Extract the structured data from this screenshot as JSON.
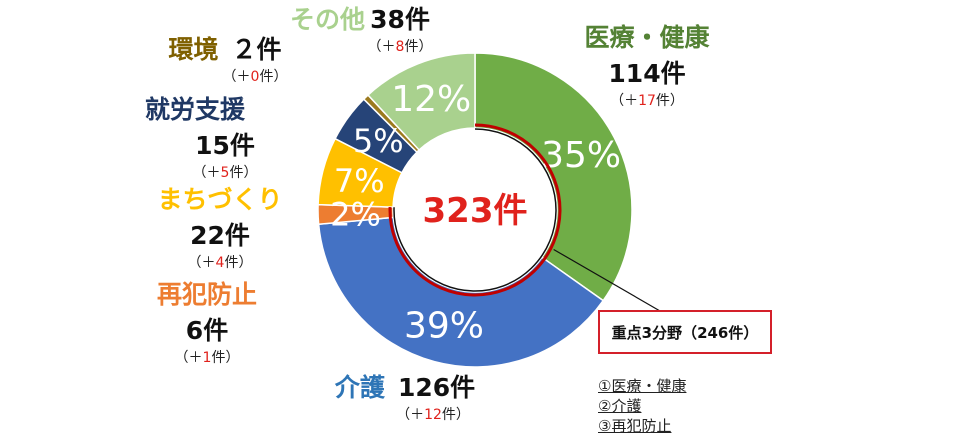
{
  "chart_data": {
    "type": "donut",
    "total_label": "323件",
    "slices": [
      {
        "name": "医療・健康",
        "percent": 35,
        "pct_label": "35%",
        "count_label": "114件",
        "delta": "17",
        "color": "#70ad47",
        "label_color": "#548235"
      },
      {
        "name": "介護",
        "percent": 39,
        "pct_label": "39%",
        "count_label": "126件",
        "delta": "12",
        "color": "#4472c4",
        "label_color": "#2e75b6"
      },
      {
        "name": "再犯防止",
        "percent": 2,
        "pct_label": "2%",
        "count_label": "6件",
        "delta": "1",
        "color": "#ed7d31",
        "label_color": "#ed7d31"
      },
      {
        "name": "まちづくり",
        "percent": 7,
        "pct_label": "7%",
        "count_label": "22件",
        "delta": "4",
        "color": "#ffc000",
        "label_color": "#ffc000"
      },
      {
        "name": "就労支援",
        "percent": 5,
        "pct_label": "5%",
        "count_label": "15件",
        "delta": "5",
        "color": "#264478",
        "label_color": "#1f3864"
      },
      {
        "name": "環境",
        "percent": 0.6,
        "pct_label": "",
        "count_label": "２件",
        "delta": "0",
        "color": "#9c7a1f",
        "label_color": "#7f6000"
      },
      {
        "name": "その他",
        "percent": 12,
        "pct_label": "12%",
        "count_label": "38件",
        "delta": "8",
        "color": "#a9d18e",
        "label_color": "#a9d18e"
      }
    ],
    "delta_prefix": "（＋",
    "delta_suffix": "件）"
  },
  "callout": {
    "title": "重点3分野（246件）",
    "items": [
      "①医療・健康",
      "②介護",
      "③再犯防止"
    ]
  }
}
